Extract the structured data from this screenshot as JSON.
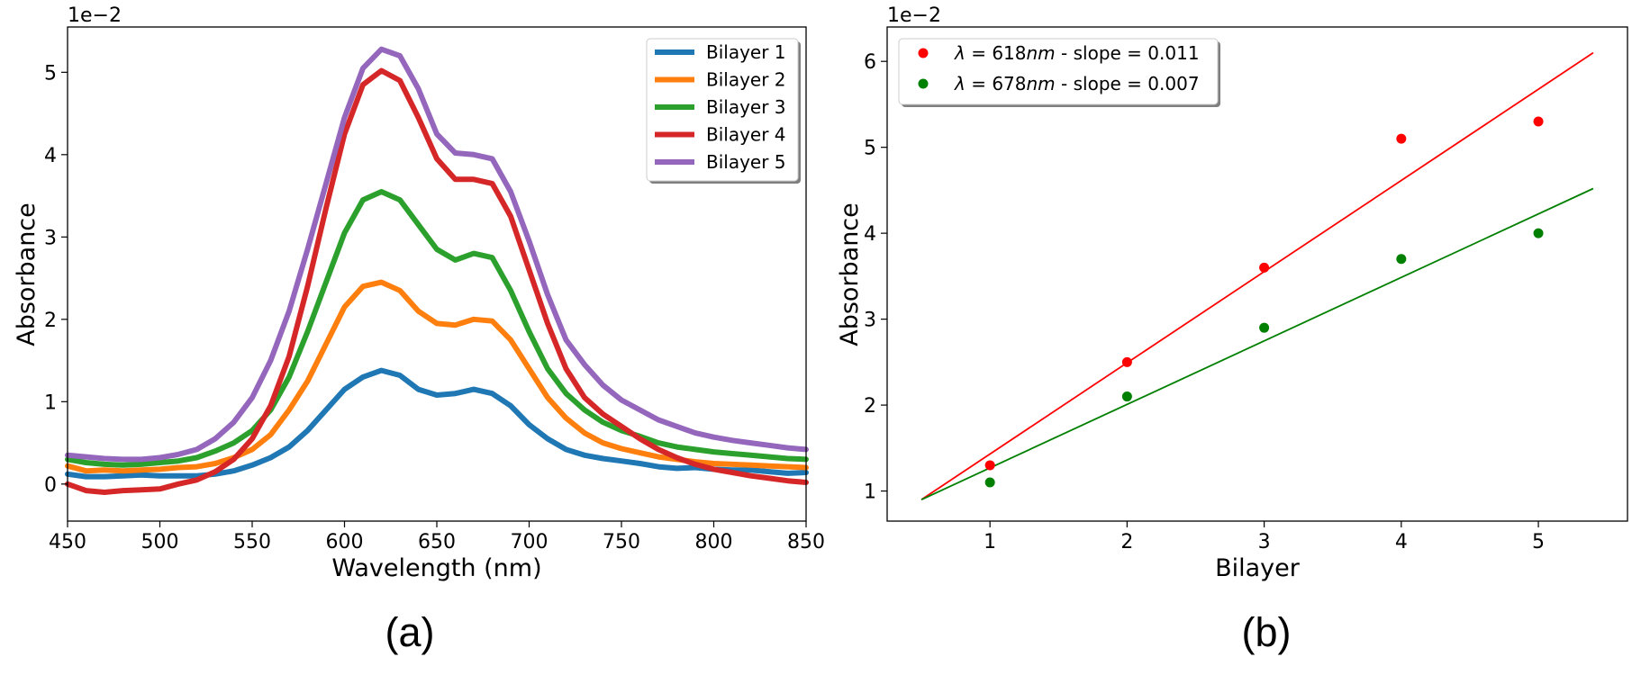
{
  "chart_data": [
    {
      "type": "line",
      "caption": "(a)",
      "xlabel": "Wavelength (nm)",
      "ylabel": "Absorbance",
      "y_multiplier": "1e−2",
      "xlim": [
        450,
        850
      ],
      "ylim": [
        -0.45,
        5.55
      ],
      "xticks": [
        450,
        500,
        550,
        600,
        650,
        700,
        750,
        800,
        850
      ],
      "yticks": [
        0,
        1,
        2,
        3,
        4,
        5
      ],
      "grid": false,
      "legend": "top-right",
      "x": [
        450,
        460,
        470,
        480,
        490,
        500,
        510,
        520,
        530,
        540,
        550,
        560,
        570,
        580,
        590,
        600,
        610,
        620,
        630,
        640,
        650,
        660,
        670,
        680,
        690,
        700,
        710,
        720,
        730,
        740,
        750,
        760,
        770,
        780,
        790,
        800,
        810,
        820,
        830,
        840,
        850
      ],
      "series": [
        {
          "name": "Bilayer 1",
          "color": "#1f77b4",
          "values": [
            0.12,
            0.09,
            0.09,
            0.1,
            0.11,
            0.1,
            0.1,
            0.1,
            0.12,
            0.16,
            0.23,
            0.32,
            0.45,
            0.65,
            0.9,
            1.15,
            1.3,
            1.38,
            1.32,
            1.15,
            1.08,
            1.1,
            1.15,
            1.1,
            0.95,
            0.72,
            0.55,
            0.42,
            0.35,
            0.31,
            0.28,
            0.25,
            0.21,
            0.19,
            0.2,
            0.18,
            0.17,
            0.17,
            0.15,
            0.13,
            0.14
          ]
        },
        {
          "name": "Bilayer 2",
          "color": "#ff7f0e",
          "values": [
            0.22,
            0.16,
            0.17,
            0.16,
            0.17,
            0.18,
            0.2,
            0.21,
            0.25,
            0.32,
            0.42,
            0.6,
            0.9,
            1.25,
            1.7,
            2.15,
            2.4,
            2.45,
            2.35,
            2.1,
            1.95,
            1.93,
            2.0,
            1.98,
            1.75,
            1.4,
            1.05,
            0.8,
            0.62,
            0.5,
            0.43,
            0.38,
            0.33,
            0.3,
            0.27,
            0.25,
            0.24,
            0.23,
            0.22,
            0.21,
            0.2
          ]
        },
        {
          "name": "Bilayer 3",
          "color": "#2ca02c",
          "values": [
            0.3,
            0.26,
            0.24,
            0.23,
            0.24,
            0.26,
            0.28,
            0.32,
            0.4,
            0.5,
            0.65,
            0.9,
            1.3,
            1.85,
            2.45,
            3.05,
            3.45,
            3.55,
            3.45,
            3.15,
            2.85,
            2.72,
            2.8,
            2.75,
            2.35,
            1.85,
            1.4,
            1.1,
            0.9,
            0.75,
            0.65,
            0.58,
            0.5,
            0.45,
            0.42,
            0.39,
            0.37,
            0.35,
            0.33,
            0.31,
            0.3
          ]
        },
        {
          "name": "Bilayer 4",
          "color": "#d62728",
          "values": [
            0.0,
            -0.08,
            -0.1,
            -0.08,
            -0.07,
            -0.06,
            0.0,
            0.05,
            0.15,
            0.3,
            0.55,
            0.95,
            1.55,
            2.4,
            3.35,
            4.25,
            4.85,
            5.02,
            4.9,
            4.45,
            3.95,
            3.7,
            3.7,
            3.65,
            3.25,
            2.6,
            1.95,
            1.4,
            1.05,
            0.85,
            0.7,
            0.55,
            0.42,
            0.32,
            0.24,
            0.18,
            0.14,
            0.1,
            0.07,
            0.04,
            0.02
          ]
        },
        {
          "name": "Bilayer 5",
          "color": "#9467bd",
          "values": [
            0.35,
            0.33,
            0.31,
            0.3,
            0.3,
            0.32,
            0.36,
            0.42,
            0.55,
            0.75,
            1.05,
            1.5,
            2.1,
            2.85,
            3.65,
            4.45,
            5.05,
            5.28,
            5.2,
            4.8,
            4.25,
            4.02,
            4.0,
            3.95,
            3.55,
            2.95,
            2.3,
            1.75,
            1.45,
            1.2,
            1.02,
            0.9,
            0.78,
            0.7,
            0.62,
            0.57,
            0.53,
            0.5,
            0.47,
            0.44,
            0.42
          ]
        }
      ]
    },
    {
      "type": "scatter",
      "caption": "(b)",
      "xlabel": "Bilayer",
      "ylabel": "Absorbance",
      "y_multiplier": "1e−2",
      "xlim": [
        0.25,
        5.65
      ],
      "ylim": [
        0.65,
        6.4
      ],
      "xticks": [
        1,
        2,
        3,
        4,
        5
      ],
      "yticks": [
        1,
        2,
        3,
        4,
        5,
        6
      ],
      "grid": false,
      "legend": "top-left",
      "series": [
        {
          "name": "λ = 618nm - slope = 0.011",
          "lambda": "618",
          "slope": "0.011",
          "color": "#ff0000",
          "x": [
            1,
            2,
            3,
            4,
            5
          ],
          "values": [
            1.3,
            2.5,
            3.6,
            5.1,
            5.3
          ],
          "fit_x": [
            0.5,
            5.4
          ],
          "fit_y": [
            0.9,
            6.1
          ]
        },
        {
          "name": "λ = 678nm - slope = 0.007",
          "lambda": "678",
          "slope": "0.007",
          "color": "#008000",
          "x": [
            1,
            2,
            3,
            4,
            5
          ],
          "values": [
            1.1,
            2.1,
            2.9,
            3.7,
            4.0
          ],
          "fit_x": [
            0.5,
            5.4
          ],
          "fit_y": [
            0.9,
            4.52
          ]
        }
      ]
    }
  ]
}
